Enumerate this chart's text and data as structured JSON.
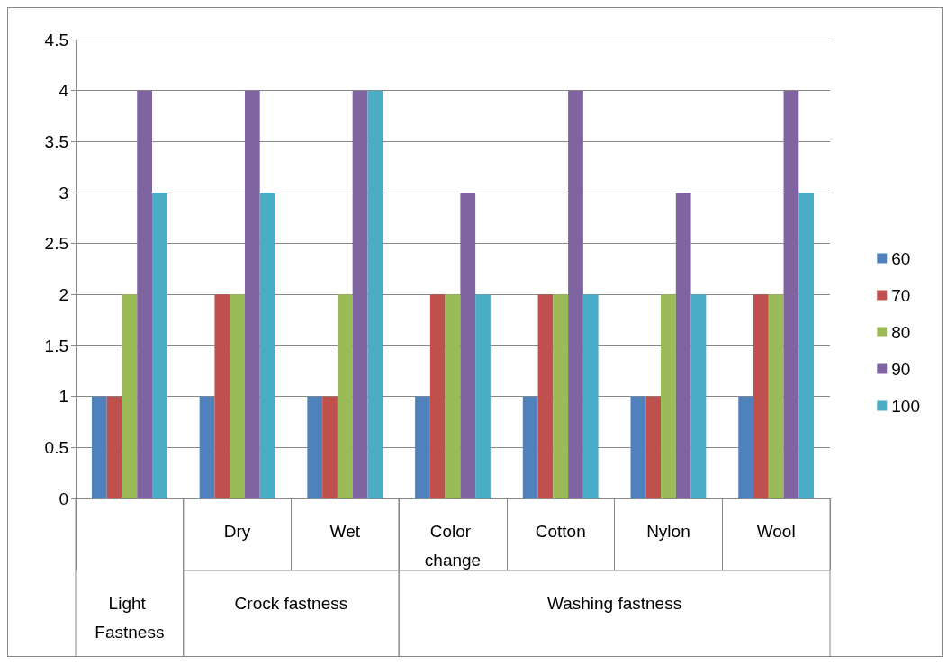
{
  "chart_data": {
    "type": "bar",
    "categories": [
      null,
      "Dry",
      "Wet",
      "Color change",
      "Cotton",
      "Nylon",
      "Wool"
    ],
    "annotations": [
      "Light Fastness",
      "Crock fastness",
      "Washing fastness"
    ],
    "series": [
      {
        "name": "60",
        "color": "#4f81bd",
        "values": [
          1,
          1,
          1,
          1,
          1,
          1,
          1
        ]
      },
      {
        "name": "70",
        "color": "#c0504d",
        "values": [
          1,
          2,
          1,
          2,
          2,
          1,
          2
        ]
      },
      {
        "name": "80",
        "color": "#9bbb59",
        "values": [
          2,
          2,
          2,
          2,
          2,
          2,
          2
        ]
      },
      {
        "name": "90",
        "color": "#8064a2",
        "values": [
          4,
          4,
          4,
          3,
          4,
          3,
          4
        ]
      },
      {
        "name": "100",
        "color": "#4bacc6",
        "values": [
          3,
          3,
          4,
          2,
          2,
          2,
          3
        ]
      }
    ],
    "ylim": [
      0,
      4.5
    ],
    "yticks": [
      0,
      0.5,
      1,
      1.5,
      2,
      2.5,
      3,
      3.5,
      4,
      4.5
    ],
    "grid": "y",
    "legend": "right"
  }
}
